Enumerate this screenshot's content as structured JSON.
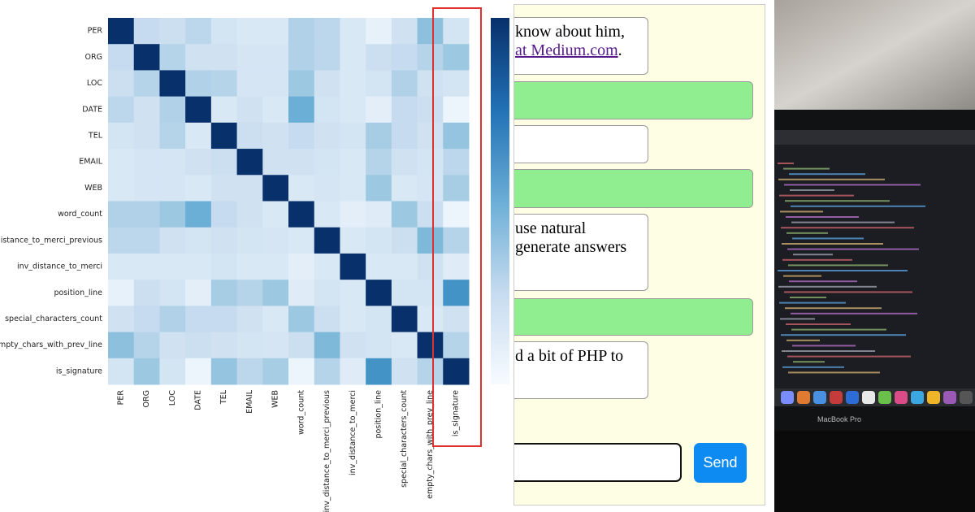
{
  "chart_data": {
    "type": "heatmap",
    "categories": [
      "PER",
      "ORG",
      "LOC",
      "DATE",
      "TEL",
      "EMAIL",
      "WEB",
      "word_count",
      "inv_distance_to_merci_previous",
      "inv_distance_to_merci",
      "position_line",
      "special_characters_count",
      "empty_chars_with_prev_line",
      "is_signature"
    ],
    "values": [
      [
        1,
        0.25,
        0.22,
        0.28,
        0.18,
        0.15,
        0.15,
        0.32,
        0.28,
        0.15,
        0.08,
        0.2,
        0.42,
        0.18
      ],
      [
        0.25,
        1,
        0.3,
        0.2,
        0.2,
        0.17,
        0.17,
        0.32,
        0.28,
        0.15,
        0.22,
        0.25,
        0.3,
        0.38
      ],
      [
        0.22,
        0.3,
        1,
        0.32,
        0.3,
        0.17,
        0.17,
        0.38,
        0.2,
        0.15,
        0.18,
        0.32,
        0.2,
        0.18
      ],
      [
        0.28,
        0.2,
        0.32,
        1,
        0.15,
        0.2,
        0.15,
        0.5,
        0.18,
        0.15,
        0.1,
        0.25,
        0.22,
        0.05
      ],
      [
        0.18,
        0.2,
        0.3,
        0.15,
        1,
        0.22,
        0.2,
        0.25,
        0.2,
        0.18,
        0.35,
        0.25,
        0.2,
        0.4
      ],
      [
        0.15,
        0.17,
        0.17,
        0.2,
        0.22,
        1,
        0.2,
        0.2,
        0.18,
        0.15,
        0.3,
        0.2,
        0.18,
        0.28
      ],
      [
        0.15,
        0.17,
        0.17,
        0.15,
        0.2,
        0.2,
        1,
        0.15,
        0.17,
        0.15,
        0.38,
        0.15,
        0.17,
        0.35
      ],
      [
        0.32,
        0.32,
        0.38,
        0.5,
        0.25,
        0.2,
        0.15,
        1,
        0.15,
        0.1,
        0.12,
        0.38,
        0.22,
        0.05
      ],
      [
        0.28,
        0.28,
        0.2,
        0.18,
        0.2,
        0.18,
        0.17,
        0.15,
        1,
        0.15,
        0.18,
        0.22,
        0.45,
        0.3
      ],
      [
        0.15,
        0.15,
        0.15,
        0.15,
        0.18,
        0.15,
        0.15,
        0.1,
        0.15,
        1,
        0.15,
        0.15,
        0.2,
        0.12
      ],
      [
        0.08,
        0.22,
        0.18,
        0.1,
        0.35,
        0.3,
        0.38,
        0.12,
        0.18,
        0.15,
        1,
        0.18,
        0.18,
        0.62
      ],
      [
        0.2,
        0.25,
        0.32,
        0.25,
        0.25,
        0.2,
        0.15,
        0.38,
        0.22,
        0.15,
        0.18,
        1,
        0.15,
        0.2
      ],
      [
        0.42,
        0.3,
        0.2,
        0.22,
        0.2,
        0.18,
        0.17,
        0.22,
        0.45,
        0.2,
        0.18,
        0.15,
        1,
        0.3
      ],
      [
        0.18,
        0.38,
        0.18,
        0.05,
        0.4,
        0.28,
        0.35,
        0.05,
        0.3,
        0.12,
        0.62,
        0.2,
        0.3,
        1
      ]
    ],
    "zlim": [
      0,
      1
    ],
    "colormap": "Blues"
  },
  "chat": {
    "messages": [
      {
        "lines": [
          "know about him,"
        ],
        "link": "at Medium.com",
        "after": "."
      },
      {
        "lines": []
      },
      {
        "lines": []
      },
      {
        "lines": []
      },
      {
        "lines": [
          "use natural",
          "generate answers"
        ]
      },
      {
        "lines": []
      },
      {
        "lines": [
          "d a bit of PHP to"
        ]
      }
    ],
    "send": "Send"
  },
  "photo": {
    "label": "MacBook Pro"
  }
}
